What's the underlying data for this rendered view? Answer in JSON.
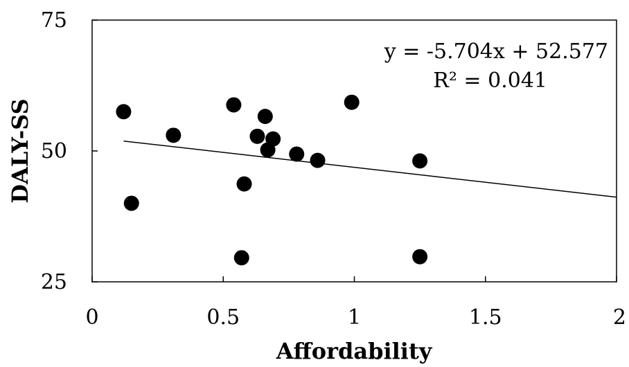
{
  "chart_data": {
    "type": "scatter",
    "xlabel": "Affordability",
    "ylabel": "DALY-SS",
    "xlim": [
      0,
      2
    ],
    "ylim": [
      25,
      75
    ],
    "xticks": [
      "0",
      "0.5",
      "1",
      "1.5",
      "2"
    ],
    "yticks": [
      "25",
      "50",
      "75"
    ],
    "grid": false,
    "marker_color": "#000000",
    "series": [
      {
        "points": [
          {
            "x": 0.12,
            "y": 57.5
          },
          {
            "x": 0.15,
            "y": 40.0
          },
          {
            "x": 0.31,
            "y": 53.0
          },
          {
            "x": 0.54,
            "y": 58.8
          },
          {
            "x": 0.57,
            "y": 29.6
          },
          {
            "x": 0.58,
            "y": 43.7
          },
          {
            "x": 0.63,
            "y": 52.8
          },
          {
            "x": 0.66,
            "y": 56.6
          },
          {
            "x": 0.67,
            "y": 50.2
          },
          {
            "x": 0.69,
            "y": 52.3
          },
          {
            "x": 0.78,
            "y": 49.4
          },
          {
            "x": 0.86,
            "y": 48.2
          },
          {
            "x": 0.99,
            "y": 59.3
          },
          {
            "x": 1.25,
            "y": 48.1
          },
          {
            "x": 1.25,
            "y": 29.8
          }
        ]
      }
    ],
    "trendline": {
      "slope": -5.704,
      "intercept": 52.577,
      "x_range": [
        0.12,
        2.0
      ]
    },
    "annotations": {
      "equation": "y = -5.704x + 52.577",
      "r_squared": "R² = 0.041"
    }
  }
}
